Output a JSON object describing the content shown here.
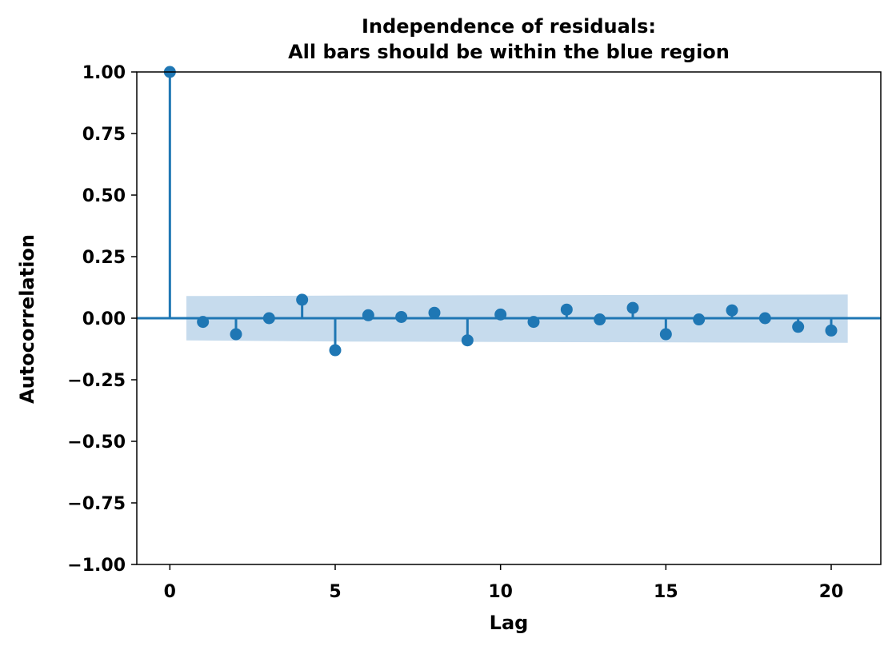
{
  "chart_data": {
    "type": "scatter",
    "subtype": "acf-stem",
    "title": "Independence of residuals:",
    "subtitle": "All bars should be within the blue region",
    "xlabel": "Lag",
    "ylabel": "Autocorrelation",
    "xlim": [
      -1,
      21.5
    ],
    "ylim": [
      -1.0,
      1.0
    ],
    "xticks": [
      0,
      5,
      10,
      15,
      20
    ],
    "xtick_labels": [
      "0",
      "5",
      "10",
      "15",
      "20"
    ],
    "yticks": [
      1.0,
      0.75,
      0.5,
      0.25,
      0.0,
      -0.25,
      -0.5,
      -0.75,
      -1.0
    ],
    "ytick_labels": [
      "1.00",
      "0.75",
      "0.50",
      "0.25",
      "0.00",
      "−0.25",
      "−0.50",
      "−0.75",
      "−1.00"
    ],
    "grid": false,
    "color": "#1f77b4",
    "band_color": "#c6dbed",
    "series": [
      {
        "lags": [
          0,
          1,
          2,
          3,
          4,
          5,
          6,
          7,
          8,
          9,
          10,
          11,
          12,
          13,
          14,
          15,
          16,
          17,
          18,
          19,
          20
        ],
        "values": [
          1.0,
          -0.015,
          -0.065,
          0.0,
          0.075,
          -0.13,
          0.012,
          0.005,
          0.022,
          -0.09,
          0.015,
          -0.015,
          0.035,
          -0.005,
          0.042,
          -0.065,
          -0.005,
          0.032,
          0.0,
          -0.035,
          -0.05
        ]
      }
    ],
    "confidence_band": {
      "lags": [
        0.5,
        5.5,
        20.5
      ],
      "upper": [
        0.09,
        0.092,
        0.096
      ],
      "lower": [
        -0.09,
        -0.095,
        -0.1
      ]
    }
  }
}
